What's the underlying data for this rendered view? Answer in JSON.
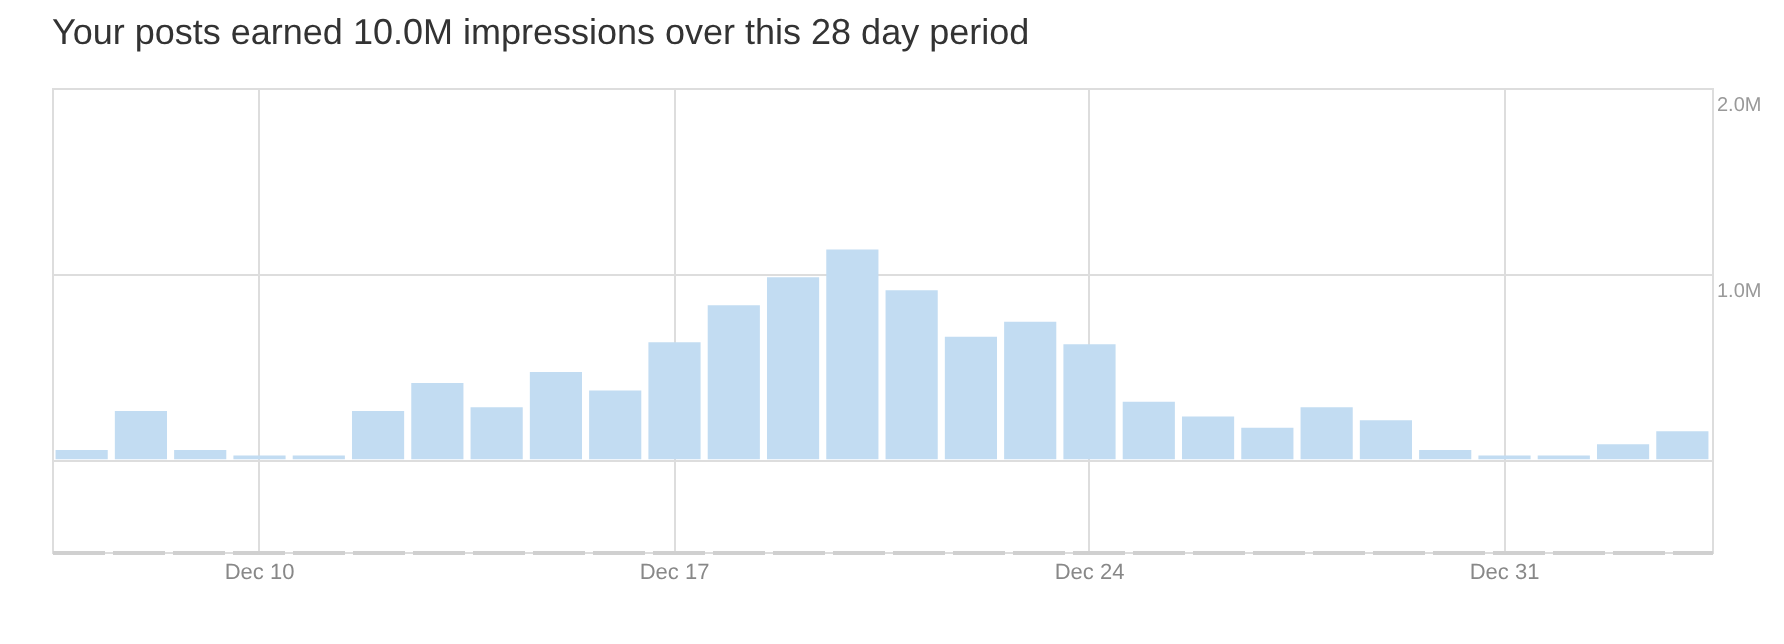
{
  "chart_data": {
    "type": "bar",
    "title": "Your posts earned 10.0M impressions over this 28 day period",
    "categories": [
      null,
      null,
      null,
      "Dec 10",
      null,
      null,
      null,
      null,
      null,
      null,
      "Dec 17",
      null,
      null,
      null,
      null,
      null,
      null,
      "Dec 24",
      null,
      null,
      null,
      null,
      null,
      null,
      "Dec 31",
      null,
      null,
      null
    ],
    "values": [
      0.05,
      0.26,
      0.05,
      0.02,
      0.02,
      0.26,
      0.41,
      0.28,
      0.47,
      0.37,
      0.63,
      0.83,
      0.98,
      1.13,
      0.91,
      0.66,
      0.74,
      0.62,
      0.31,
      0.23,
      0.17,
      0.28,
      0.21,
      0.05,
      0.02,
      0.02,
      0.08,
      0.15
    ],
    "color": "#c2dcf2",
    "ylim": [
      -0.5,
      2.0
    ],
    "yticks": [
      {
        "value": 0,
        "label": null
      },
      {
        "value": 1,
        "label": "1.0M"
      },
      {
        "value": 2,
        "label": "2.0M"
      }
    ],
    "grid": true
  }
}
